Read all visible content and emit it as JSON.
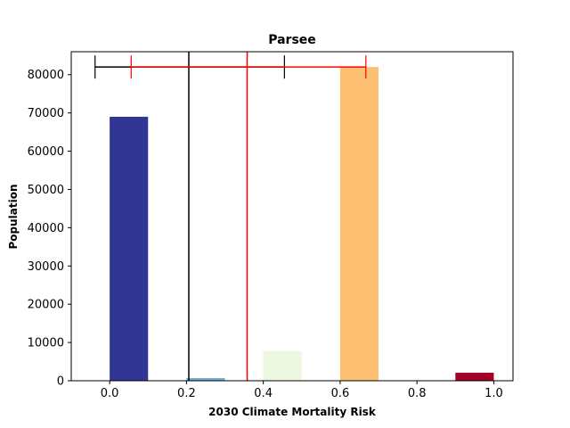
{
  "chart_data": {
    "type": "bar",
    "title": "Parsee",
    "xlabel": "2030 Climate Mortality Risk",
    "ylabel": "Population",
    "xlim": [
      -0.1,
      1.05
    ],
    "ylim": [
      0,
      86000
    ],
    "xticks": [
      0.0,
      0.2,
      0.4,
      0.6,
      0.8,
      1.0
    ],
    "xtick_labels": [
      "0.0",
      "0.2",
      "0.4",
      "0.6",
      "0.8",
      "1.0"
    ],
    "yticks": [
      0,
      10000,
      20000,
      30000,
      40000,
      50000,
      60000,
      70000,
      80000
    ],
    "ytick_labels": [
      "0",
      "10000",
      "20000",
      "30000",
      "40000",
      "50000",
      "60000",
      "70000",
      "80000"
    ],
    "bar_width": 0.1,
    "bars": [
      {
        "x": 0.0,
        "value": 69000,
        "color": "#313695"
      },
      {
        "x": 0.2,
        "value": 700,
        "color": "#74add1"
      },
      {
        "x": 0.4,
        "value": 7800,
        "color": "#edf8e0"
      },
      {
        "x": 0.6,
        "value": 82000,
        "color": "#fdbf71"
      },
      {
        "x": 0.9,
        "value": 2100,
        "color": "#a50026"
      }
    ],
    "reference_lines": [
      {
        "name": "black",
        "x": 0.206,
        "color": "#000000",
        "error_low": -0.038,
        "error_high": 0.455,
        "error_y": 82000
      },
      {
        "name": "red",
        "x": 0.358,
        "color": "#ff0000",
        "error_low": 0.056,
        "error_high": 0.667,
        "error_y": 82000
      }
    ]
  }
}
